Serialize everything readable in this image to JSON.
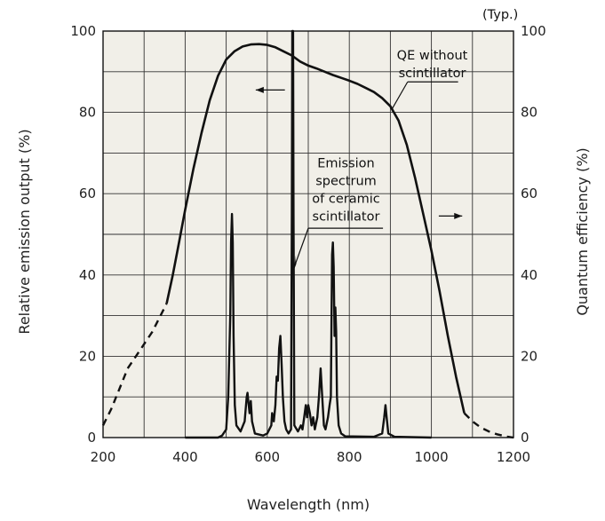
{
  "chart_data": {
    "type": "line",
    "note": "(Typ.)",
    "xlabel": "Wavelength (nm)",
    "ylabel_left": "Relative emission output (%)",
    "ylabel_right": "Quantum efficiency (%)",
    "xlim": [
      200,
      1200
    ],
    "ylim": [
      0,
      100
    ],
    "x_ticks": [
      200,
      400,
      600,
      800,
      1000,
      1200
    ],
    "y_ticks": [
      0,
      20,
      40,
      60,
      80,
      100
    ],
    "grid": true,
    "colors": {
      "background": "#f1efe8",
      "line": "#111111",
      "grid": "#333333"
    },
    "annotations": {
      "qe": [
        "QE without",
        "scintillator"
      ],
      "emission": [
        "Emission",
        "spectrum",
        "of ceramic",
        "scintillator"
      ]
    },
    "series": [
      {
        "name": "QE without scintillator",
        "axis": "right",
        "dashed_segments": [
          [
            [
              200,
              3
            ],
            [
              220,
              7
            ],
            [
              240,
              12
            ],
            [
              260,
              17
            ],
            [
              280,
              20
            ],
            [
              300,
              23
            ],
            [
              320,
              26
            ],
            [
              340,
              30
            ],
            [
              355,
              33
            ]
          ],
          [
            [
              1080,
              6
            ],
            [
              1100,
              4
            ],
            [
              1120,
              2.5
            ],
            [
              1140,
              1.5
            ],
            [
              1160,
              0.8
            ],
            [
              1180,
              0.3
            ],
            [
              1200,
              0
            ]
          ]
        ],
        "solid": [
          [
            355,
            33
          ],
          [
            370,
            40
          ],
          [
            385,
            48
          ],
          [
            400,
            56
          ],
          [
            420,
            66
          ],
          [
            440,
            75
          ],
          [
            460,
            83
          ],
          [
            480,
            89
          ],
          [
            500,
            93
          ],
          [
            520,
            95
          ],
          [
            540,
            96.2
          ],
          [
            560,
            96.7
          ],
          [
            580,
            96.8
          ],
          [
            600,
            96.6
          ],
          [
            620,
            96
          ],
          [
            640,
            95
          ],
          [
            660,
            94
          ],
          [
            680,
            92.5
          ],
          [
            700,
            91.5
          ],
          [
            720,
            90.8
          ],
          [
            740,
            90
          ],
          [
            760,
            89.2
          ],
          [
            780,
            88.5
          ],
          [
            800,
            87.8
          ],
          [
            820,
            87
          ],
          [
            840,
            86
          ],
          [
            860,
            85
          ],
          [
            880,
            83.5
          ],
          [
            900,
            81.5
          ],
          [
            920,
            78
          ],
          [
            940,
            72
          ],
          [
            960,
            64
          ],
          [
            980,
            55
          ],
          [
            1000,
            46
          ],
          [
            1020,
            36
          ],
          [
            1040,
            25
          ],
          [
            1060,
            15
          ],
          [
            1080,
            6
          ]
        ]
      },
      {
        "name": "Emission spectrum of ceramic scintillator",
        "axis": "left",
        "points": [
          [
            400,
            0
          ],
          [
            480,
            0
          ],
          [
            490,
            0.5
          ],
          [
            500,
            2
          ],
          [
            505,
            10
          ],
          [
            510,
            30
          ],
          [
            512,
            48
          ],
          [
            514,
            55
          ],
          [
            516,
            48
          ],
          [
            518,
            25
          ],
          [
            521,
            8
          ],
          [
            525,
            3
          ],
          [
            535,
            1.5
          ],
          [
            545,
            4
          ],
          [
            550,
            10
          ],
          [
            552,
            11
          ],
          [
            554,
            9
          ],
          [
            557,
            6
          ],
          [
            560,
            9
          ],
          [
            563,
            4
          ],
          [
            570,
            1
          ],
          [
            590,
            0.5
          ],
          [
            600,
            1
          ],
          [
            610,
            3
          ],
          [
            612,
            6
          ],
          [
            616,
            4
          ],
          [
            620,
            8
          ],
          [
            623,
            15
          ],
          [
            626,
            14
          ],
          [
            629,
            22
          ],
          [
            632,
            25
          ],
          [
            635,
            18
          ],
          [
            638,
            10
          ],
          [
            642,
            4
          ],
          [
            646,
            2
          ],
          [
            652,
            1
          ],
          [
            658,
            2
          ],
          [
            660,
            55
          ],
          [
            661,
            100
          ],
          [
            663,
            100
          ],
          [
            664,
            55
          ],
          [
            666,
            3
          ],
          [
            675,
            1.5
          ],
          [
            682,
            3
          ],
          [
            686,
            2
          ],
          [
            690,
            5
          ],
          [
            694,
            8
          ],
          [
            697,
            5
          ],
          [
            700,
            8
          ],
          [
            704,
            6
          ],
          [
            708,
            3
          ],
          [
            712,
            5
          ],
          [
            716,
            2
          ],
          [
            722,
            5
          ],
          [
            726,
            10
          ],
          [
            730,
            17
          ],
          [
            734,
            10
          ],
          [
            738,
            3
          ],
          [
            742,
            2
          ],
          [
            748,
            5
          ],
          [
            752,
            8
          ],
          [
            755,
            10
          ],
          [
            758,
            45
          ],
          [
            760,
            48
          ],
          [
            762,
            42
          ],
          [
            764,
            25
          ],
          [
            766,
            32
          ],
          [
            768,
            26
          ],
          [
            770,
            10
          ],
          [
            774,
            3
          ],
          [
            780,
            1
          ],
          [
            790,
            0.3
          ],
          [
            860,
            0.2
          ],
          [
            880,
            1
          ],
          [
            885,
            5
          ],
          [
            888,
            8
          ],
          [
            891,
            5
          ],
          [
            895,
            1
          ],
          [
            910,
            0.2
          ],
          [
            1000,
            0
          ]
        ]
      }
    ]
  }
}
